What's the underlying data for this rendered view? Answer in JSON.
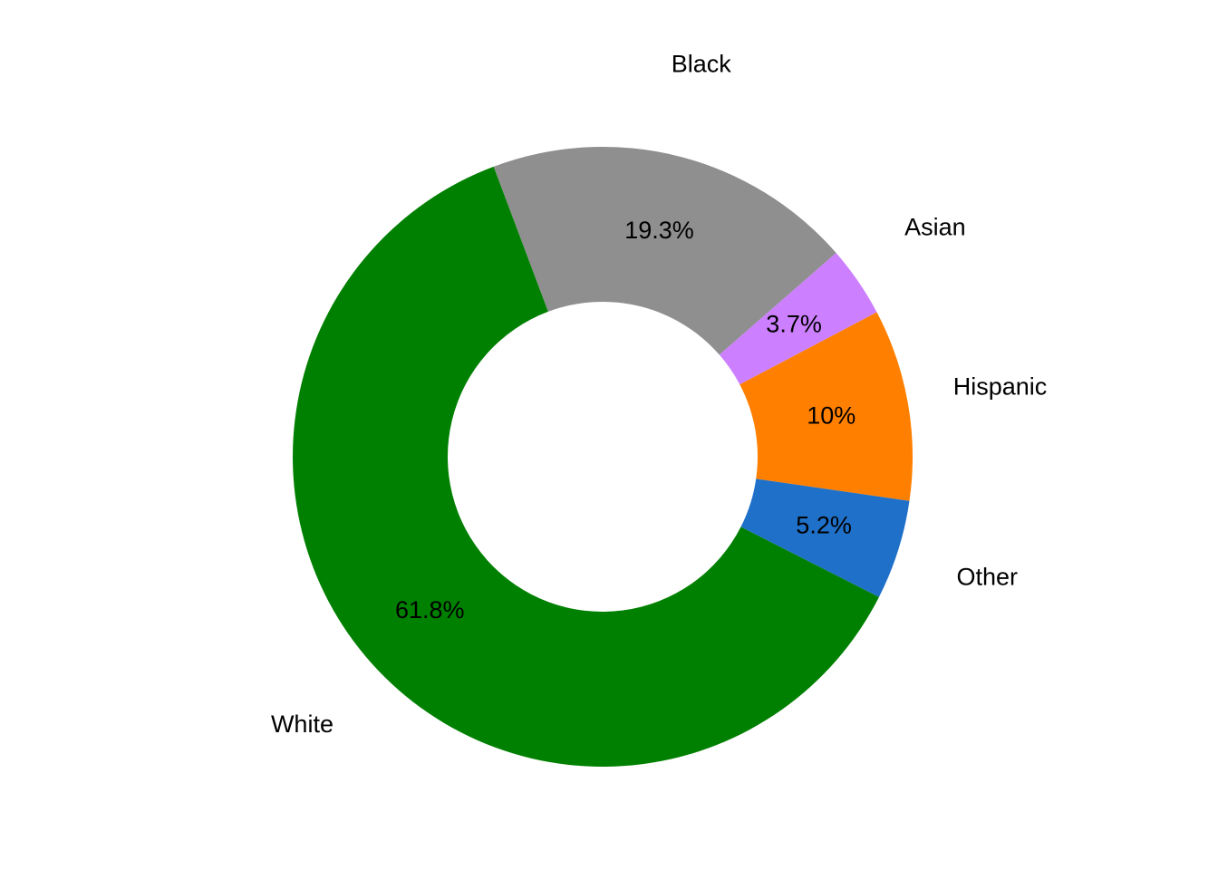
{
  "chart_data": {
    "type": "pie",
    "categories": [
      "Black",
      "Asian",
      "Hispanic",
      "Other",
      "White"
    ],
    "values": [
      19.3,
      3.7,
      10,
      5.2,
      61.8
    ],
    "value_labels": [
      "19.3%",
      "3.7%",
      "10%",
      "5.2%",
      "61.8%"
    ],
    "colors": [
      "#8f8f8f",
      "#cc80ff",
      "#ff8000",
      "#1f70c8",
      "#008000"
    ]
  }
}
